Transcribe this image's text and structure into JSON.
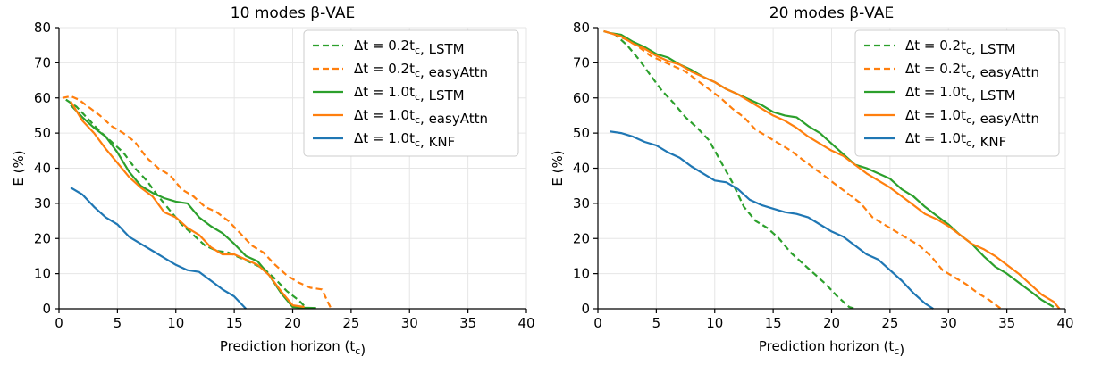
{
  "chart_data": [
    {
      "type": "line",
      "title": "10 modes β-VAE",
      "xlabel": "Prediction horizon (t_c)",
      "ylabel": "E (%)",
      "xlim": [
        0,
        40
      ],
      "ylim": [
        0,
        80
      ],
      "xticks": [
        0,
        5,
        10,
        15,
        20,
        25,
        30,
        35,
        40
      ],
      "yticks": [
        0,
        10,
        20,
        30,
        40,
        50,
        60,
        70,
        80
      ],
      "grid": true,
      "legend_position": "top-right",
      "series": [
        {
          "name": "Δt = 0.2t_c, LSTM",
          "color": "#2ca02c",
          "dash": "dashed",
          "x": [
            0.6,
            1.5,
            2.5,
            3.5,
            4.5,
            5.5,
            6.5,
            7.5,
            8.5,
            9.5,
            10.5,
            11.5,
            12.5,
            13.5,
            14.5,
            15.5,
            16.5,
            17.5,
            18.5,
            19.5,
            20.5,
            21.0,
            21.3
          ],
          "y": [
            59.5,
            57.5,
            54,
            50.5,
            47.5,
            44.5,
            40,
            36.5,
            32,
            28,
            24,
            21,
            18,
            16.5,
            16,
            14.5,
            13,
            11.5,
            8.5,
            5,
            2.5,
            0.8,
            0
          ]
        },
        {
          "name": "Δt = 0.2t_c, easyAttn",
          "color": "#ff7f0e",
          "dash": "dashed",
          "x": [
            0.3,
            1.0,
            1.7,
            2.5,
            3.5,
            4.5,
            5.5,
            6.5,
            7.5,
            8.5,
            9.5,
            10.5,
            11.5,
            12.5,
            13.5,
            14.5,
            15.5,
            16.5,
            17.5,
            18.5,
            19.5,
            20.5,
            21.5,
            22.5,
            23.0,
            23.3
          ],
          "y": [
            60,
            60.5,
            59.5,
            57.5,
            55,
            52,
            50,
            47.5,
            43,
            40,
            38,
            34,
            32,
            29,
            27.5,
            25,
            21.5,
            18,
            16,
            12.5,
            9.5,
            7.5,
            6,
            5.5,
            2,
            0
          ]
        },
        {
          "name": "Δt = 1.0t_c, LSTM",
          "color": "#2ca02c",
          "dash": "solid",
          "x": [
            1,
            2,
            3,
            4,
            5,
            6,
            7,
            8,
            9,
            10,
            11,
            12,
            13,
            14,
            15,
            16,
            17,
            18,
            19,
            20,
            21,
            22
          ],
          "y": [
            58,
            54.5,
            51.5,
            49,
            44.5,
            39,
            35,
            33,
            31.5,
            30.5,
            30,
            26,
            23.5,
            21.5,
            18.5,
            15,
            13.5,
            9.5,
            4.5,
            0.5,
            0.3,
            0.2
          ]
        },
        {
          "name": "Δt = 1.0t_c, easyAttn",
          "color": "#ff7f0e",
          "dash": "solid",
          "x": [
            1,
            2,
            3,
            4,
            5,
            6,
            7,
            8,
            9,
            10,
            11,
            12,
            13,
            14,
            15,
            16,
            17,
            18,
            19,
            20,
            21
          ],
          "y": [
            59,
            53.5,
            50,
            45.5,
            41.5,
            37.5,
            34.5,
            32,
            27.5,
            26,
            23,
            21,
            17.5,
            15.5,
            15.5,
            14,
            12.5,
            9.5,
            5,
            1,
            0.5
          ]
        },
        {
          "name": "Δt = 1.0t_c, KNF",
          "color": "#1f77b4",
          "dash": "solid",
          "x": [
            1,
            2,
            3,
            4,
            5,
            6,
            7,
            8,
            9,
            10,
            11,
            12,
            13,
            14,
            15,
            16
          ],
          "y": [
            34.5,
            32.5,
            29,
            26,
            24,
            20.5,
            18.5,
            16.5,
            14.5,
            12.5,
            11,
            10.5,
            8,
            5.5,
            3.5,
            0
          ]
        }
      ]
    },
    {
      "type": "line",
      "title": "20 modes β-VAE",
      "xlabel": "Prediction horizon (t_c)",
      "ylabel": "E (%)",
      "xlim": [
        0,
        40
      ],
      "ylim": [
        0,
        80
      ],
      "xticks": [
        0,
        5,
        10,
        15,
        20,
        25,
        30,
        35,
        40
      ],
      "yticks": [
        0,
        10,
        20,
        30,
        40,
        50,
        60,
        70,
        80
      ],
      "grid": true,
      "legend_position": "top-right",
      "series": [
        {
          "name": "Δt = 0.2t_c, LSTM",
          "color": "#2ca02c",
          "dash": "dashed",
          "x": [
            0.5,
            1.5,
            2.5,
            3.5,
            4.5,
            5.5,
            6.5,
            7.5,
            8.5,
            9.5,
            10.5,
            11.5,
            12.5,
            13.5,
            14.5,
            15.5,
            16.5,
            17.5,
            18.5,
            19.5,
            20.5,
            21.5,
            22.0
          ],
          "y": [
            79,
            78,
            75,
            71,
            66.5,
            62,
            58.5,
            54.5,
            51.5,
            48,
            42,
            36,
            29,
            25,
            23,
            20,
            16,
            13,
            10,
            7,
            3.5,
            0.5,
            0
          ]
        },
        {
          "name": "Δt = 0.2t_c, easyAttn",
          "color": "#ff7f0e",
          "dash": "dashed",
          "x": [
            0.5,
            1.5,
            2.5,
            3.5,
            4.5,
            5.5,
            6.5,
            7.5,
            8.5,
            9.5,
            10.5,
            11.5,
            12.5,
            13.5,
            14.5,
            15.5,
            16.5,
            17.5,
            18.5,
            19.5,
            20.5,
            21.5,
            22.5,
            23.5,
            24.5,
            25.5,
            26.5,
            27.5,
            28.5,
            29.5,
            30.5,
            31.5,
            32.5,
            33.5,
            34.5
          ],
          "y": [
            79,
            78,
            76.5,
            74.5,
            72,
            70.5,
            69,
            67.5,
            65,
            62.5,
            60,
            57,
            54.5,
            51,
            49,
            47,
            45,
            42.5,
            40,
            37.5,
            35,
            32.5,
            30,
            26,
            24,
            22,
            20,
            18,
            15,
            11,
            9,
            7,
            4.5,
            2.5,
            0
          ]
        },
        {
          "name": "Δt = 1.0t_c, LSTM",
          "color": "#2ca02c",
          "dash": "solid",
          "x": [
            1,
            2,
            3,
            4,
            5,
            6,
            7,
            8,
            9,
            10,
            11,
            12,
            13,
            14,
            15,
            16,
            17,
            18,
            19,
            20,
            21,
            22,
            23,
            24,
            25,
            26,
            27,
            28,
            29,
            30,
            31,
            32,
            33,
            34,
            35,
            36,
            37,
            38,
            39
          ],
          "y": [
            78.5,
            78,
            76,
            74.5,
            72.5,
            71.5,
            69.5,
            68,
            66,
            64.5,
            62.5,
            61,
            59.5,
            58,
            56,
            55,
            54.5,
            52,
            50,
            47,
            44,
            41,
            40,
            38.5,
            37,
            34,
            32,
            29,
            26.5,
            24,
            21,
            18.5,
            15,
            12,
            10,
            7.5,
            5,
            2.5,
            0.5
          ]
        },
        {
          "name": "Δt = 1.0t_c, easyAttn",
          "color": "#ff7f0e",
          "dash": "solid",
          "x": [
            1,
            2,
            3,
            4,
            5,
            6,
            7,
            8,
            9,
            10,
            11,
            12,
            13,
            14,
            15,
            16,
            17,
            18,
            19,
            20,
            21,
            22,
            23,
            24,
            25,
            26,
            27,
            28,
            29,
            30,
            31,
            32,
            33,
            34,
            35,
            36,
            37,
            38,
            39,
            39.5
          ],
          "y": [
            78.5,
            77.5,
            75.5,
            74,
            72,
            70.5,
            69.5,
            67.5,
            66,
            64.5,
            62.5,
            61,
            59,
            57,
            55,
            53.5,
            51.5,
            49,
            47,
            45,
            43.5,
            41,
            38.5,
            36.5,
            34.5,
            32,
            29.5,
            27,
            25.5,
            23.5,
            21,
            18.5,
            17,
            15,
            12.5,
            10,
            7,
            4,
            2,
            0
          ]
        },
        {
          "name": "Δt = 1.0t_c, KNF",
          "color": "#1f77b4",
          "dash": "solid",
          "x": [
            1,
            2,
            3,
            4,
            5,
            6,
            7,
            8,
            9,
            10,
            11,
            12,
            13,
            14,
            15,
            16,
            17,
            18,
            19,
            20,
            21,
            22,
            23,
            24,
            25,
            26,
            27,
            28,
            28.7
          ],
          "y": [
            50.5,
            50,
            49,
            47.5,
            46.5,
            44.5,
            43,
            40.5,
            38.5,
            36.5,
            36,
            34,
            31,
            29.5,
            28.5,
            27.5,
            27,
            26,
            24,
            22,
            20.5,
            18,
            15.5,
            14,
            11,
            8,
            4.5,
            1.5,
            0
          ]
        }
      ]
    }
  ]
}
